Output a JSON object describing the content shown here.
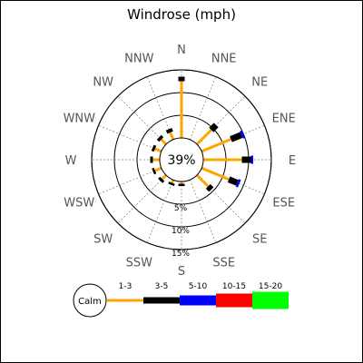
{
  "chart_data": {
    "type": "windrose",
    "title": "Windrose (mph)",
    "center_label": "39%",
    "ring_labels": [
      "5%",
      "10%",
      "15%"
    ],
    "rings_pct": [
      5,
      10,
      15
    ],
    "directions": [
      "N",
      "NNE",
      "NE",
      "ENE",
      "E",
      "ESE",
      "SE",
      "SSE",
      "S",
      "SSW",
      "SW",
      "WSW",
      "W",
      "WNW",
      "NW",
      "NNW"
    ],
    "speed_bins": [
      {
        "name": "1-3",
        "color": "#FFA500"
      },
      {
        "name": "3-5",
        "color": "#000000"
      },
      {
        "name": "5-10",
        "color": "#0000FF"
      },
      {
        "name": "10-15",
        "color": "#FF0000"
      },
      {
        "name": "15-20",
        "color": "#00FF00"
      }
    ],
    "calm_label": "Calm",
    "series": [
      {
        "direction": "N",
        "values": [
          12.5,
          1.0,
          0.0,
          0,
          0
        ]
      },
      {
        "direction": "NNE",
        "values": [
          0.0,
          0.0,
          0.0,
          0,
          0
        ]
      },
      {
        "direction": "NE",
        "values": [
          4.5,
          1.5,
          0.0,
          0,
          0
        ]
      },
      {
        "direction": "ENE",
        "values": [
          7.0,
          2.5,
          0.5,
          0,
          0
        ]
      },
      {
        "direction": "E",
        "values": [
          8.5,
          2.0,
          0.5,
          0,
          0
        ]
      },
      {
        "direction": "ESE",
        "values": [
          6.5,
          2.0,
          0.5,
          0,
          0
        ]
      },
      {
        "direction": "SE",
        "values": [
          3.5,
          1.0,
          0.0,
          0,
          0
        ]
      },
      {
        "direction": "SSE",
        "values": [
          0.0,
          0.0,
          0.0,
          0,
          0
        ]
      },
      {
        "direction": "S",
        "values": [
          0.5,
          0.5,
          0.0,
          0,
          0
        ]
      },
      {
        "direction": "SSW",
        "values": [
          0.7,
          0.5,
          0.0,
          0,
          0
        ]
      },
      {
        "direction": "SW",
        "values": [
          1.2,
          0.6,
          0.0,
          0,
          0
        ]
      },
      {
        "direction": "WSW",
        "values": [
          1.5,
          0.5,
          0.0,
          0,
          0
        ]
      },
      {
        "direction": "W",
        "values": [
          1.5,
          0.6,
          0.0,
          0,
          0
        ]
      },
      {
        "direction": "WNW",
        "values": [
          1.5,
          0.6,
          0.0,
          0,
          0
        ]
      },
      {
        "direction": "NW",
        "values": [
          1.5,
          0.7,
          0.0,
          0,
          0
        ]
      },
      {
        "direction": "NNW",
        "values": [
          1.7,
          0.8,
          0.0,
          0,
          0
        ]
      }
    ]
  }
}
